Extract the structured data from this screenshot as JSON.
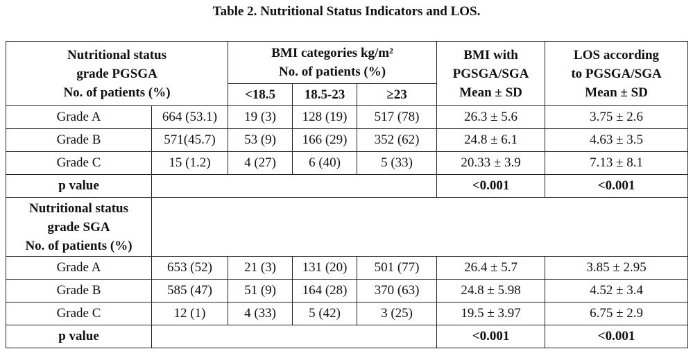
{
  "title": "Table 2. Nutritional Status Indicators and LOS.",
  "header": {
    "col1": [
      "Nutritional status",
      "grade PGSGA",
      "No. of patients (%)"
    ],
    "bmi_cat": [
      "BMI categories kg/m²",
      "No. of patients (%)"
    ],
    "bmi_with": [
      "BMI with",
      "PGSGA/SGA",
      "Mean ± SD"
    ],
    "los": [
      "LOS according",
      "to PGSGA/SGA",
      "Mean ± SD"
    ],
    "sub": [
      "<18.5",
      "18.5-23",
      "≥23"
    ]
  },
  "pgsga_rows": [
    [
      "Grade A",
      "664 (53.1)",
      "19 (3)",
      "128 (19)",
      "517 (78)",
      "26.3 ± 5.6",
      "3.75 ± 2.6"
    ],
    [
      "Grade B",
      "571(45.7)",
      "53 (9)",
      "166 (29)",
      "352 (62)",
      "24.8 ± 6.1",
      "4.63 ± 3.5"
    ],
    [
      "Grade C",
      "15 (1.2)",
      "4 (27)",
      "6 (40)",
      "5 (33)",
      "20.33 ± 3.9",
      "7.13 ± 8.1"
    ]
  ],
  "pgsga_p": [
    "p value",
    "<0.001",
    "<0.001"
  ],
  "sga_header": [
    "Nutritional status",
    "grade SGA",
    "No. of patients (%)"
  ],
  "sga_rows": [
    [
      "Grade A",
      "653 (52)",
      "21 (3)",
      "131 (20)",
      "501 (77)",
      "26.4 ± 5.7",
      "3.85 ± 2.95"
    ],
    [
      "Grade B",
      "585 (47)",
      "51 (9)",
      "164 (28)",
      "370 (63)",
      "24.8 ± 5.98",
      "4.52 ± 3.4"
    ],
    [
      "Grade C",
      "12 (1)",
      "4 (33)",
      "5 (42)",
      "3 (25)",
      "19.5 ± 3.97",
      "6.75 ± 2.9"
    ]
  ],
  "sga_p": [
    "p value",
    "<0.001",
    "<0.001"
  ]
}
